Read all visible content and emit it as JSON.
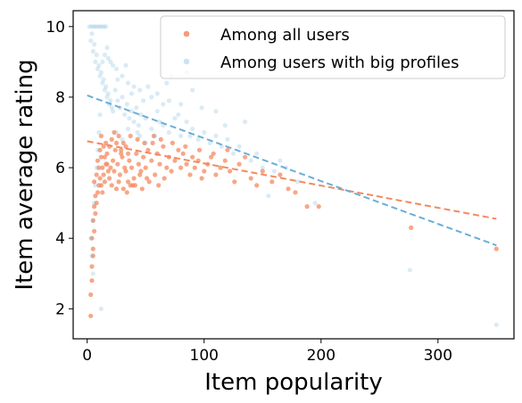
{
  "chart_data": {
    "type": "scatter",
    "title": "",
    "xlabel": "Item popularity",
    "ylabel": "Item average rating",
    "xlim": [
      -12,
      365
    ],
    "ylim": [
      1.15,
      10.45
    ],
    "xticks": [
      0,
      100,
      200,
      300
    ],
    "yticks": [
      2,
      4,
      6,
      8,
      10
    ],
    "grid": false,
    "legend_position": "top-right",
    "colors": {
      "all": "#f4895f",
      "big": "#6aaed6"
    },
    "series": [
      {
        "name": "Among all users",
        "color": "#f4895f",
        "marker_alpha": 0.75,
        "points": [
          [
            3,
            1.8
          ],
          [
            3,
            2.4
          ],
          [
            4,
            2.8
          ],
          [
            4,
            3.2
          ],
          [
            5,
            3.5
          ],
          [
            5,
            3.7
          ],
          [
            4,
            4.0
          ],
          [
            6,
            4.2
          ],
          [
            5,
            4.5
          ],
          [
            7,
            4.7
          ],
          [
            6,
            4.9
          ],
          [
            8,
            5.0
          ],
          [
            7,
            5.2
          ],
          [
            9,
            5.3
          ],
          [
            10,
            5.5
          ],
          [
            6,
            5.6
          ],
          [
            8,
            5.8
          ],
          [
            11,
            5.7
          ],
          [
            12,
            5.5
          ],
          [
            13,
            5.3
          ],
          [
            14,
            5.8
          ],
          [
            15,
            5.6
          ],
          [
            10,
            6.0
          ],
          [
            16,
            6.1
          ],
          [
            12,
            6.3
          ],
          [
            18,
            5.9
          ],
          [
            20,
            6.0
          ],
          [
            22,
            6.2
          ],
          [
            17,
            6.4
          ],
          [
            19,
            5.7
          ],
          [
            24,
            6.5
          ],
          [
            26,
            6.1
          ],
          [
            28,
            5.8
          ],
          [
            30,
            6.3
          ],
          [
            32,
            6.0
          ],
          [
            35,
            5.6
          ],
          [
            33,
            6.6
          ],
          [
            36,
            6.2
          ],
          [
            38,
            6.0
          ],
          [
            40,
            5.7
          ],
          [
            42,
            6.4
          ],
          [
            44,
            6.1
          ],
          [
            46,
            5.9
          ],
          [
            48,
            6.3
          ],
          [
            50,
            6.0
          ],
          [
            52,
            6.5
          ],
          [
            55,
            6.2
          ],
          [
            58,
            5.8
          ],
          [
            60,
            6.4
          ],
          [
            62,
            6.1
          ],
          [
            65,
            6.6
          ],
          [
            68,
            6.0
          ],
          [
            70,
            6.3
          ],
          [
            72,
            5.9
          ],
          [
            75,
            6.2
          ],
          [
            78,
            6.5
          ],
          [
            80,
            6.0
          ],
          [
            82,
            6.4
          ],
          [
            85,
            6.1
          ],
          [
            88,
            5.8
          ],
          [
            90,
            6.3
          ],
          [
            92,
            6.0
          ],
          [
            95,
            6.2
          ],
          [
            98,
            5.7
          ],
          [
            100,
            5.9
          ],
          [
            103,
            6.1
          ],
          [
            106,
            6.3
          ],
          [
            110,
            5.8
          ],
          [
            114,
            6.0
          ],
          [
            118,
            6.2
          ],
          [
            122,
            5.9
          ],
          [
            126,
            5.6
          ],
          [
            130,
            6.1
          ],
          [
            135,
            6.3
          ],
          [
            140,
            5.7
          ],
          [
            145,
            5.5
          ],
          [
            150,
            5.9
          ],
          [
            158,
            5.6
          ],
          [
            165,
            5.8
          ],
          [
            172,
            5.4
          ],
          [
            178,
            5.3
          ],
          [
            188,
            4.9
          ],
          [
            198,
            4.9
          ],
          [
            277,
            4.3
          ],
          [
            350,
            3.7
          ],
          [
            14,
            6.6
          ],
          [
            21,
            6.8
          ],
          [
            27,
            6.9
          ],
          [
            31,
            6.7
          ],
          [
            37,
            6.9
          ],
          [
            43,
            6.8
          ],
          [
            49,
            6.7
          ],
          [
            57,
            6.9
          ],
          [
            63,
            6.8
          ],
          [
            73,
            6.7
          ],
          [
            84,
            6.6
          ],
          [
            96,
            6.5
          ],
          [
            108,
            6.4
          ],
          [
            120,
            6.5
          ],
          [
            12,
            6.9
          ],
          [
            16,
            6.7
          ],
          [
            23,
            7.0
          ],
          [
            29,
            6.4
          ],
          [
            41,
            5.5
          ],
          [
            47,
            5.4
          ],
          [
            53,
            5.6
          ],
          [
            61,
            5.5
          ],
          [
            25,
            5.4
          ],
          [
            34,
            5.3
          ],
          [
            39,
            5.5
          ],
          [
            45,
            5.8
          ],
          [
            51,
            5.7
          ],
          [
            56,
            6.7
          ],
          [
            66,
            5.7
          ],
          [
            9,
            6.2
          ],
          [
            11,
            6.5
          ],
          [
            13,
            6.0
          ],
          [
            15,
            6.3
          ],
          [
            17,
            6.1
          ],
          [
            19,
            6.6
          ],
          [
            21,
            5.5
          ],
          [
            23,
            5.9
          ],
          [
            25,
            6.7
          ],
          [
            27,
            5.6
          ],
          [
            29,
            6.5
          ],
          [
            31,
            5.4
          ],
          [
            33,
            5.9
          ],
          [
            35,
            6.4
          ],
          [
            37,
            5.5
          ]
        ]
      },
      {
        "name": "Among users with big profiles",
        "color": "#6aaed6",
        "marker_alpha": 0.25,
        "points": [
          [
            2,
            10.0
          ],
          [
            4,
            10.0
          ],
          [
            6,
            10.0
          ],
          [
            8,
            10.0
          ],
          [
            10,
            10.0
          ],
          [
            12,
            10.0
          ],
          [
            14,
            10.0
          ],
          [
            16,
            10.0
          ],
          [
            3,
            9.6
          ],
          [
            5,
            9.3
          ],
          [
            7,
            9.0
          ],
          [
            9,
            8.8
          ],
          [
            11,
            8.6
          ],
          [
            13,
            8.4
          ],
          [
            15,
            8.2
          ],
          [
            17,
            8.0
          ],
          [
            19,
            7.8
          ],
          [
            21,
            7.7
          ],
          [
            4,
            9.8
          ],
          [
            6,
            9.5
          ],
          [
            8,
            9.2
          ],
          [
            10,
            8.9
          ],
          [
            12,
            8.7
          ],
          [
            14,
            8.5
          ],
          [
            16,
            8.3
          ],
          [
            18,
            8.1
          ],
          [
            20,
            7.9
          ],
          [
            22,
            7.6
          ],
          [
            24,
            8.2
          ],
          [
            26,
            7.9
          ],
          [
            28,
            7.7
          ],
          [
            30,
            8.0
          ],
          [
            32,
            7.5
          ],
          [
            34,
            7.8
          ],
          [
            36,
            7.4
          ],
          [
            38,
            7.6
          ],
          [
            40,
            7.3
          ],
          [
            42,
            7.7
          ],
          [
            44,
            7.2
          ],
          [
            46,
            7.5
          ],
          [
            48,
            7.9
          ],
          [
            50,
            7.4
          ],
          [
            55,
            7.1
          ],
          [
            60,
            7.6
          ],
          [
            65,
            7.2
          ],
          [
            70,
            7.0
          ],
          [
            75,
            7.4
          ],
          [
            80,
            6.9
          ],
          [
            85,
            7.3
          ],
          [
            90,
            7.1
          ],
          [
            95,
            6.8
          ],
          [
            100,
            7.0
          ],
          [
            105,
            6.7
          ],
          [
            110,
            6.9
          ],
          [
            115,
            6.6
          ],
          [
            120,
            6.8
          ],
          [
            125,
            6.4
          ],
          [
            130,
            6.6
          ],
          [
            140,
            6.2
          ],
          [
            150,
            6.0
          ],
          [
            160,
            5.9
          ],
          [
            170,
            6.0
          ],
          [
            180,
            5.6
          ],
          [
            195,
            5.0
          ],
          [
            155,
            5.2
          ],
          [
            276,
            3.1
          ],
          [
            350,
            1.55
          ],
          [
            12,
            2.0
          ],
          [
            5,
            3.0
          ],
          [
            4,
            3.5
          ],
          [
            3,
            4.0
          ],
          [
            5,
            4.5
          ],
          [
            6,
            5.0
          ],
          [
            7,
            5.5
          ],
          [
            8,
            6.0
          ],
          [
            9,
            6.5
          ],
          [
            10,
            7.0
          ],
          [
            11,
            7.5
          ],
          [
            13,
            9.0
          ],
          [
            15,
            9.2
          ],
          [
            17,
            9.4
          ],
          [
            20,
            9.0
          ],
          [
            25,
            8.8
          ],
          [
            30,
            8.6
          ],
          [
            35,
            8.4
          ],
          [
            40,
            8.3
          ],
          [
            45,
            8.2
          ],
          [
            55,
            8.0
          ],
          [
            60,
            8.1
          ],
          [
            70,
            7.9
          ],
          [
            80,
            7.8
          ],
          [
            90,
            8.2
          ],
          [
            110,
            7.6
          ],
          [
            135,
            7.3
          ],
          [
            25,
            7.0
          ],
          [
            30,
            6.8
          ],
          [
            35,
            7.1
          ],
          [
            45,
            6.9
          ],
          [
            50,
            6.7
          ],
          [
            58,
            6.9
          ],
          [
            65,
            7.8
          ],
          [
            72,
            8.6
          ],
          [
            85,
            8.7
          ],
          [
            18,
            9.1
          ],
          [
            22,
            8.9
          ],
          [
            26,
            8.5
          ],
          [
            33,
            8.9
          ],
          [
            38,
            8.1
          ],
          [
            43,
            7.0
          ],
          [
            52,
            8.3
          ],
          [
            62,
            7.3
          ],
          [
            68,
            8.4
          ],
          [
            78,
            7.5
          ],
          [
            88,
            6.9
          ],
          [
            98,
            7.7
          ],
          [
            118,
            7.2
          ],
          [
            145,
            6.4
          ],
          [
            165,
            6.2
          ]
        ]
      }
    ],
    "trendlines": [
      {
        "series": "Among all users",
        "color": "#f4895f",
        "style": "dashed",
        "x": [
          0,
          350
        ],
        "y": [
          6.75,
          4.55
        ]
      },
      {
        "series": "Among users with big profiles",
        "color": "#6aaed6",
        "style": "dashed",
        "x": [
          0,
          350
        ],
        "y": [
          8.05,
          3.8
        ]
      }
    ]
  }
}
